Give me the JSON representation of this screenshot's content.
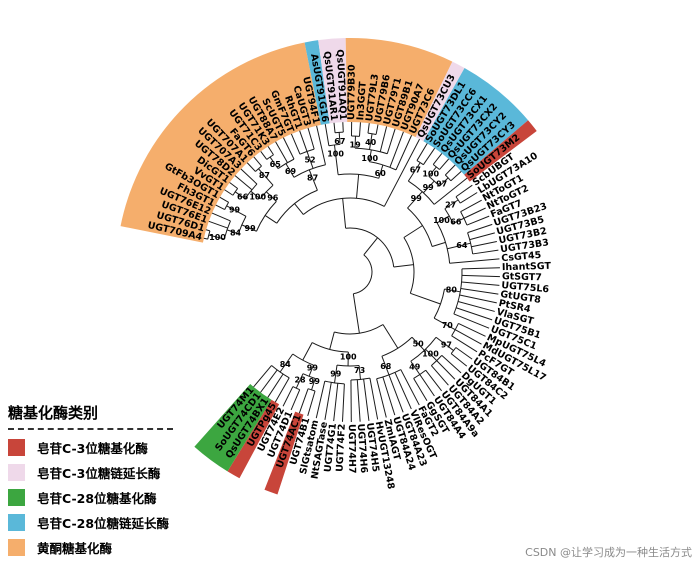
{
  "legend": {
    "title": "糖基化酶类别",
    "items": [
      {
        "label": "皂苷C-3位糖基化酶",
        "color": "#c8453a"
      },
      {
        "label": "皂苷C-3位糖链延长酶",
        "color": "#efd9ea"
      },
      {
        "label": "皂苷C-28位糖基化酶",
        "color": "#3ca640"
      },
      {
        "label": "皂苷C-28位糖链延长酶",
        "color": "#5ab8d9"
      },
      {
        "label": "黄酮糖基化酶",
        "color": "#f5ae6c"
      }
    ]
  },
  "leaves": [
    {
      "name": "UGT709A4",
      "group": "flavonoid"
    },
    {
      "name": "UGT76D1",
      "group": "flavonoid"
    },
    {
      "name": "UGT76E1",
      "group": "flavonoid"
    },
    {
      "name": "UGT76E12",
      "group": "flavonoid"
    },
    {
      "name": "Fh3GT1",
      "group": "flavonoid"
    },
    {
      "name": "GtFb3OGT1",
      "group": "flavonoid"
    },
    {
      "name": "VvGT1",
      "group": "flavonoid"
    },
    {
      "name": "DicGT1",
      "group": "flavonoid"
    },
    {
      "name": "UGT78D2",
      "group": "flavonoid"
    },
    {
      "name": "UGT707A3",
      "group": "flavonoid"
    },
    {
      "name": "UGT707A1",
      "group": "flavonoid"
    },
    {
      "name": "FaGT6",
      "group": "flavonoid"
    },
    {
      "name": "UGT71C3",
      "group": "flavonoid"
    },
    {
      "name": "UGT71K3",
      "group": "flavonoid"
    },
    {
      "name": "UGT88A7",
      "group": "flavonoid"
    },
    {
      "name": "ScUGT5",
      "group": "flavonoid"
    },
    {
      "name": "GmF7GT",
      "group": "flavonoid"
    },
    {
      "name": "RhGT1",
      "group": "flavonoid"
    },
    {
      "name": "CaUGT3",
      "group": "flavonoid"
    },
    {
      "name": "UGT94F1",
      "group": "flavonoid"
    },
    {
      "name": "AsUGT91G16",
      "group": "c28ext"
    },
    {
      "name": "QsUGT91AR1",
      "group": "c3ext"
    },
    {
      "name": "QsUGT91AQ1",
      "group": "c3ext"
    },
    {
      "name": "UGT79B30",
      "group": "flavonoid"
    },
    {
      "name": "In3GGT",
      "group": "flavonoid"
    },
    {
      "name": "UGT79L3",
      "group": "flavonoid"
    },
    {
      "name": "UGT79B6",
      "group": "flavonoid"
    },
    {
      "name": "UGT79T1",
      "group": "flavonoid"
    },
    {
      "name": "UGT89B1",
      "group": "flavonoid"
    },
    {
      "name": "UGT90A7",
      "group": "flavonoid"
    },
    {
      "name": "UGT73C6",
      "group": "flavonoid"
    },
    {
      "name": "QsUGT73CU3",
      "group": "c3ext"
    },
    {
      "name": "SoUGT73DL1",
      "group": "c28ext"
    },
    {
      "name": "SoUGT73CC6",
      "group": "c28ext"
    },
    {
      "name": "QsUGT73CX1",
      "group": "c28ext"
    },
    {
      "name": "QsUGT73CX2",
      "group": "c28ext"
    },
    {
      "name": "QsUGT73CY2",
      "group": "c28ext"
    },
    {
      "name": "QsUGT73CY3",
      "group": "c28ext"
    },
    {
      "name": "SoUGT73M2",
      "group": "c3"
    },
    {
      "name": "ScbUBGT",
      "group": "none"
    },
    {
      "name": "LbUGT73A10",
      "group": "none"
    },
    {
      "name": "NtToGT1",
      "group": "none"
    },
    {
      "name": "NtToGT2",
      "group": "none"
    },
    {
      "name": "FaGT7",
      "group": "none"
    },
    {
      "name": "UGT73B23",
      "group": "none"
    },
    {
      "name": "UGT73B5",
      "group": "none"
    },
    {
      "name": "UGT73B2",
      "group": "none"
    },
    {
      "name": "UGT73B3",
      "group": "none"
    },
    {
      "name": "CsGT45",
      "group": "none"
    },
    {
      "name": "IhantSGT",
      "group": "none"
    },
    {
      "name": "GtSGT7",
      "group": "none"
    },
    {
      "name": "UGT75L6",
      "group": "none"
    },
    {
      "name": "GtUGT8",
      "group": "none"
    },
    {
      "name": "PtSR4",
      "group": "none"
    },
    {
      "name": "VlaSGT",
      "group": "none"
    },
    {
      "name": "UGT75B1",
      "group": "none"
    },
    {
      "name": "UGT75C1",
      "group": "none"
    },
    {
      "name": "MpUGT75L4",
      "group": "none"
    },
    {
      "name": "MdUGT75L17",
      "group": "none"
    },
    {
      "name": "PcF7GT",
      "group": "none"
    },
    {
      "name": "UGT84B1",
      "group": "none"
    },
    {
      "name": "UGT84C2",
      "group": "none"
    },
    {
      "name": "DgUGT1",
      "group": "none"
    },
    {
      "name": "UGT84A1",
      "group": "none"
    },
    {
      "name": "UGT84A2",
      "group": "none"
    },
    {
      "name": "UGT84A9a",
      "group": "none"
    },
    {
      "name": "UGT84A4",
      "group": "none"
    },
    {
      "name": "GgSGT",
      "group": "none"
    },
    {
      "name": "FaGT2",
      "group": "none"
    },
    {
      "name": "VlResOGT",
      "group": "none"
    },
    {
      "name": "UGT84A23",
      "group": "none"
    },
    {
      "name": "UGT84A24",
      "group": "none"
    },
    {
      "name": "ZmIAGT",
      "group": "none"
    },
    {
      "name": "HvUGT13248",
      "group": "none"
    },
    {
      "name": "UGT74H5",
      "group": "none"
    },
    {
      "name": "UGT74H6",
      "group": "none"
    },
    {
      "name": "UGT74H7",
      "group": "none"
    },
    {
      "name": "UGT74F2",
      "group": "none"
    },
    {
      "name": "UGT74G1",
      "group": "none"
    },
    {
      "name": "NtSAGTase",
      "group": "none"
    },
    {
      "name": "SlGtsatom",
      "group": "none"
    },
    {
      "name": "UGT74B1",
      "group": "none"
    },
    {
      "name": "UGT74AC1",
      "group": "c3"
    },
    {
      "name": "UGT74D1",
      "group": "none"
    },
    {
      "name": "UGT74E2",
      "group": "none"
    },
    {
      "name": "UGTPg45",
      "group": "c3"
    },
    {
      "name": "QsUGT74BX1",
      "group": "c28"
    },
    {
      "name": "SoUGT74CD1",
      "group": "c28"
    },
    {
      "name": "UGT74M1",
      "group": "c28"
    }
  ],
  "group_colors": {
    "c3": "#c8453a",
    "c3ext": "#efd9ea",
    "c28": "#3ca640",
    "c28ext": "#5ab8d9",
    "flavonoid": "#f5ae6c"
  },
  "bootstrap": [
    "100",
    "99",
    "66",
    "87",
    "65",
    "67",
    "19",
    "40",
    "67",
    "100",
    "97",
    "27",
    "97",
    "99",
    "28",
    "52",
    "100",
    "66",
    "70",
    "100",
    "49",
    "84",
    "100",
    "69",
    "99",
    "64",
    "73",
    "99",
    "99",
    "84",
    "100",
    "68",
    "99",
    "96",
    "100",
    "99",
    "87",
    "60",
    "80",
    "50",
    "100"
  ],
  "watermark": "CSDN @让学习成为一种生活方式"
}
